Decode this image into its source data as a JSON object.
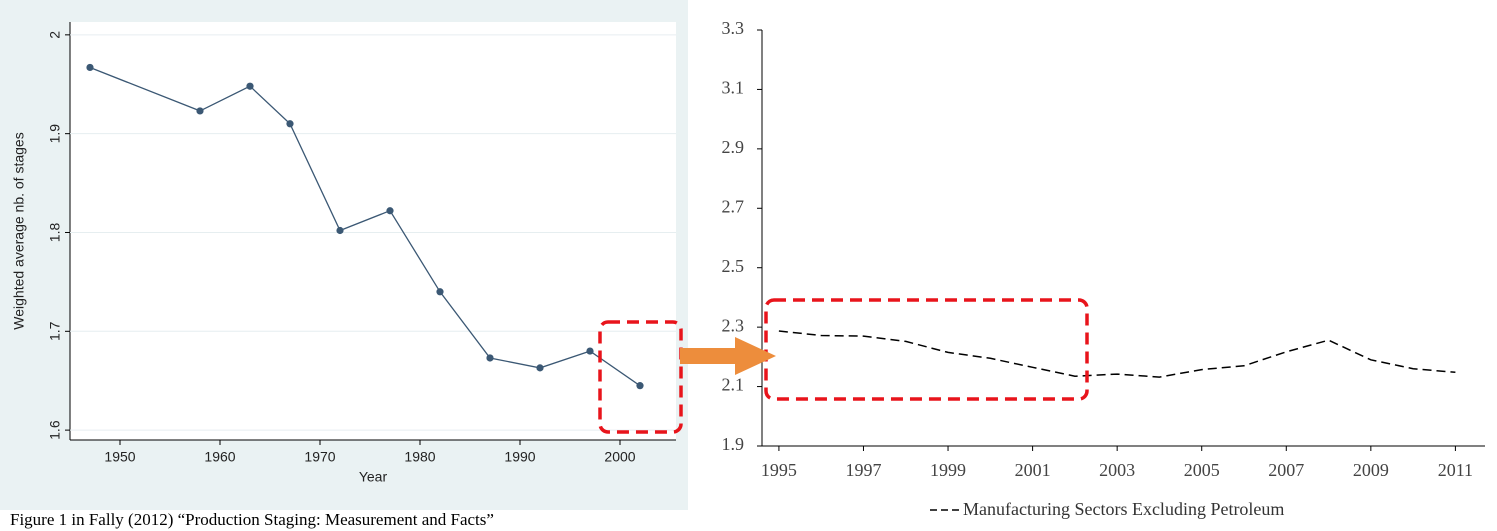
{
  "chart_data": [
    {
      "type": "line",
      "x_label": "Year",
      "y_label": "Weighted average nb. of stages",
      "caption": "Figure 1 in Fally (2012) “Production Staging: Measurement and Facts”",
      "x": [
        1947,
        1958,
        1963,
        1967,
        1972,
        1977,
        1982,
        1987,
        1992,
        1997,
        2002
      ],
      "series": [
        {
          "color": "#3b5874",
          "values": [
            1.967,
            1.923,
            1.948,
            1.91,
            1.802,
            1.822,
            1.74,
            1.673,
            1.663,
            1.68,
            1.645
          ]
        }
      ],
      "xlim": [
        1945,
        2005.6
      ],
      "ylim": [
        1.59,
        2.013
      ],
      "xticks": [
        1950,
        1960,
        1970,
        1980,
        1990,
        2000
      ],
      "yticks": [
        1.6,
        1.7,
        1.8,
        1.9,
        2
      ],
      "grid": true,
      "markers": true
    },
    {
      "type": "line",
      "x": [
        1995,
        1996,
        1997,
        1998,
        1999,
        2000,
        2001,
        2002,
        2003,
        2004,
        2005,
        2006,
        2007,
        2008,
        2009,
        2010,
        2011
      ],
      "series": [
        {
          "name": "Manufacturing Sectors Excluding Petroleum",
          "color": "#000000",
          "dashed": true,
          "values": [
            2.287,
            2.272,
            2.27,
            2.252,
            2.215,
            2.195,
            2.165,
            2.135,
            2.142,
            2.132,
            2.157,
            2.17,
            2.217,
            2.256,
            2.19,
            2.16,
            2.148
          ]
        }
      ],
      "xlim": [
        1994.6,
        2011.7
      ],
      "ylim": [
        1.9,
        3.3
      ],
      "xticks": [
        1995,
        1997,
        1999,
        2001,
        2003,
        2005,
        2007,
        2009,
        2011
      ],
      "yticks": [
        1.9,
        2.1,
        2.3,
        2.5,
        2.7,
        2.9,
        3.1,
        3.3
      ],
      "grid": false,
      "markers": false
    }
  ]
}
